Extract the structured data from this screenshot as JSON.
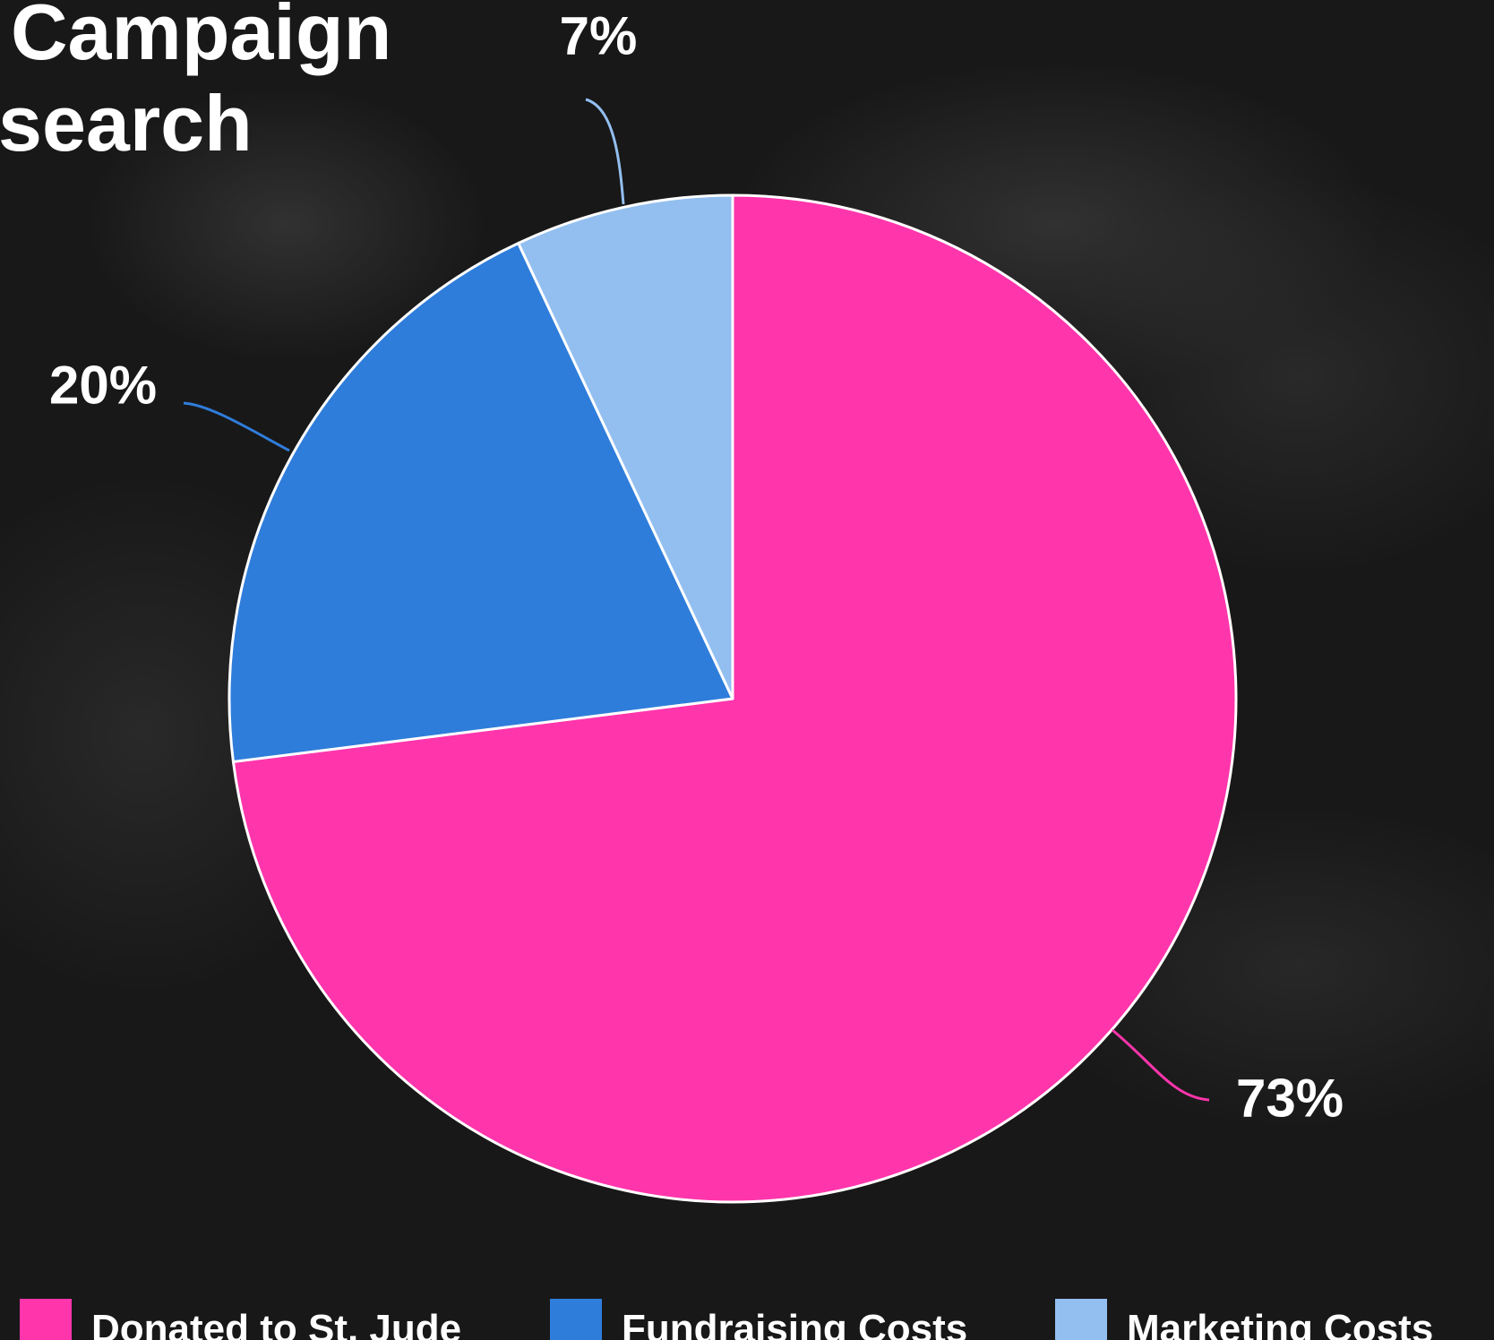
{
  "title": {
    "line1": "Campaign",
    "line2": "search"
  },
  "chart_data": {
    "type": "pie",
    "title": "",
    "start_angle_deg": 0,
    "direction": "clockwise",
    "slices": [
      {
        "name": "Donated to St. Jude",
        "value": 73,
        "label": "73%",
        "color": "#ff35ac"
      },
      {
        "name": "Fundraising Costs",
        "value": 20,
        "label": "20%",
        "color": "#2f7ddb"
      },
      {
        "name": "Marketing Costs",
        "value": 7,
        "label": "7%",
        "color": "#93bff0"
      }
    ],
    "legend_position": "bottom"
  },
  "legend": [
    {
      "label": "Donated to St. Jude",
      "color": "#ff35ac"
    },
    {
      "label": "Fundraising Costs",
      "color": "#2f7ddb"
    },
    {
      "label": "Marketing Costs",
      "color": "#93bff0"
    }
  ]
}
